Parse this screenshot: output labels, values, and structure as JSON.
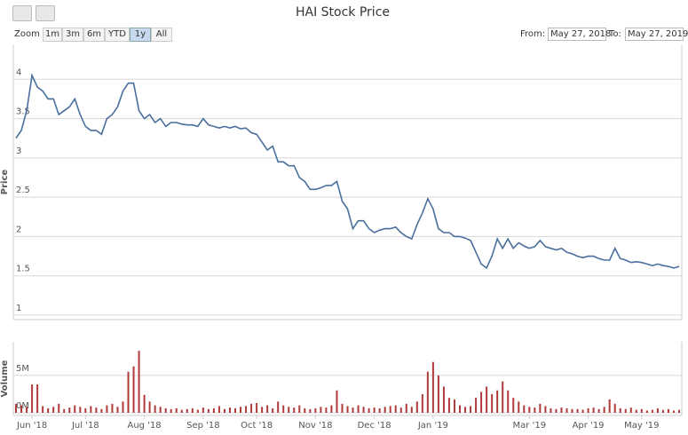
{
  "title": "HAI Stock Price",
  "range_selector": {
    "zoom_label": "Zoom",
    "buttons": [
      "1m",
      "3m",
      "6m",
      "YTD",
      "1y",
      "All"
    ],
    "selected": 4,
    "from_label": "From:",
    "from_value": "May 27, 2018",
    "to_label": "To:",
    "to_value": "May 27, 2019"
  },
  "chart_data": [
    {
      "type": "line",
      "y_label": "Price",
      "color": "#4a6f9c",
      "grid": true,
      "ylim": [
        1,
        4.5
      ],
      "yticks": [
        1,
        1.5,
        2,
        2.5,
        3,
        3.5,
        4
      ],
      "values": [
        3.25,
        3.35,
        3.6,
        4.05,
        3.9,
        3.85,
        3.75,
        3.75,
        3.55,
        3.6,
        3.65,
        3.75,
        3.55,
        3.4,
        3.35,
        3.35,
        3.3,
        3.5,
        3.55,
        3.65,
        3.85,
        3.95,
        3.95,
        3.6,
        3.5,
        3.55,
        3.45,
        3.5,
        3.4,
        3.45,
        3.45,
        3.43,
        3.42,
        3.42,
        3.4,
        3.5,
        3.42,
        3.4,
        3.38,
        3.4,
        3.38,
        3.4,
        3.37,
        3.38,
        3.32,
        3.3,
        3.2,
        3.1,
        3.15,
        2.95,
        2.95,
        2.9,
        2.9,
        2.75,
        2.7,
        2.6,
        2.6,
        2.62,
        2.65,
        2.65,
        2.7,
        2.45,
        2.35,
        2.1,
        2.2,
        2.2,
        2.1,
        2.05,
        2.08,
        2.1,
        2.1,
        2.12,
        2.05,
        2.0,
        1.97,
        2.15,
        2.3,
        2.48,
        2.35,
        2.1,
        2.05,
        2.05,
        2.0,
        2.0,
        1.98,
        1.95,
        1.8,
        1.65,
        1.6,
        1.75,
        1.97,
        1.85,
        1.97,
        1.85,
        1.92,
        1.88,
        1.85,
        1.87,
        1.95,
        1.87,
        1.85,
        1.83,
        1.85,
        1.8,
        1.78,
        1.75,
        1.73,
        1.75,
        1.75,
        1.72,
        1.7,
        1.7,
        1.85,
        1.72,
        1.7,
        1.67,
        1.68,
        1.67,
        1.65,
        1.63,
        1.65,
        1.63,
        1.62,
        1.6,
        1.62
      ]
    },
    {
      "type": "bar",
      "y_label": "Volume",
      "color": "#b03a3a",
      "grid": true,
      "ylim": [
        0,
        9500000
      ],
      "yticks": [
        {
          "value": 0,
          "label": "0M"
        },
        {
          "value": 5000000,
          "label": "5M"
        }
      ],
      "categories": [
        null,
        null,
        null,
        "Jun '18",
        null,
        null,
        null,
        null,
        null,
        null,
        null,
        null,
        null,
        "Jul '18",
        null,
        null,
        null,
        null,
        null,
        null,
        null,
        null,
        null,
        null,
        "Aug '18",
        null,
        null,
        null,
        null,
        null,
        null,
        null,
        null,
        null,
        null,
        "Sep '18",
        null,
        null,
        null,
        null,
        null,
        null,
        null,
        null,
        null,
        "Oct '18",
        null,
        null,
        null,
        null,
        null,
        null,
        null,
        null,
        null,
        null,
        "Nov '18",
        null,
        null,
        null,
        null,
        null,
        null,
        null,
        null,
        null,
        null,
        "Dec '18",
        null,
        null,
        null,
        null,
        null,
        null,
        null,
        null,
        null,
        null,
        "Jan '19",
        null,
        null,
        null,
        null,
        null,
        null,
        null,
        null,
        null,
        null,
        null,
        null,
        null,
        null,
        null,
        null,
        null,
        "Mar '19",
        null,
        null,
        null,
        null,
        null,
        null,
        null,
        null,
        null,
        null,
        "Apr '19",
        null,
        null,
        null,
        null,
        null,
        null,
        null,
        null,
        null,
        "May '19",
        null,
        null,
        null,
        null,
        null,
        null,
        null
      ],
      "values": [
        1200000,
        1000000,
        800000,
        3800000,
        3800000,
        900000,
        600000,
        800000,
        1200000,
        500000,
        700000,
        1000000,
        800000,
        600000,
        900000,
        700000,
        500000,
        1000000,
        1200000,
        800000,
        1500000,
        5500000,
        6200000,
        8300000,
        2400000,
        1500000,
        1000000,
        800000,
        600000,
        500000,
        600000,
        400000,
        500000,
        600000,
        400000,
        700000,
        500000,
        600000,
        900000,
        500000,
        700000,
        600000,
        800000,
        900000,
        1200000,
        1300000,
        800000,
        1000000,
        600000,
        1500000,
        1000000,
        800000,
        700000,
        1000000,
        600000,
        500000,
        600000,
        800000,
        700000,
        1000000,
        3000000,
        1200000,
        900000,
        700000,
        1000000,
        800000,
        600000,
        700000,
        600000,
        800000,
        900000,
        1000000,
        700000,
        1200000,
        800000,
        1500000,
        2500000,
        5500000,
        6800000,
        5000000,
        3500000,
        2000000,
        1800000,
        1000000,
        800000,
        900000,
        2000000,
        2800000,
        3500000,
        2500000,
        3000000,
        4200000,
        3000000,
        2000000,
        1500000,
        1000000,
        800000,
        700000,
        1200000,
        900000,
        600000,
        500000,
        700000,
        600000,
        500000,
        500000,
        400000,
        600000,
        700000,
        500000,
        800000,
        1800000,
        1200000,
        600000,
        500000,
        700000,
        400000,
        500000,
        300000,
        400000,
        600000,
        400000,
        500000,
        300000,
        400000
      ]
    }
  ]
}
